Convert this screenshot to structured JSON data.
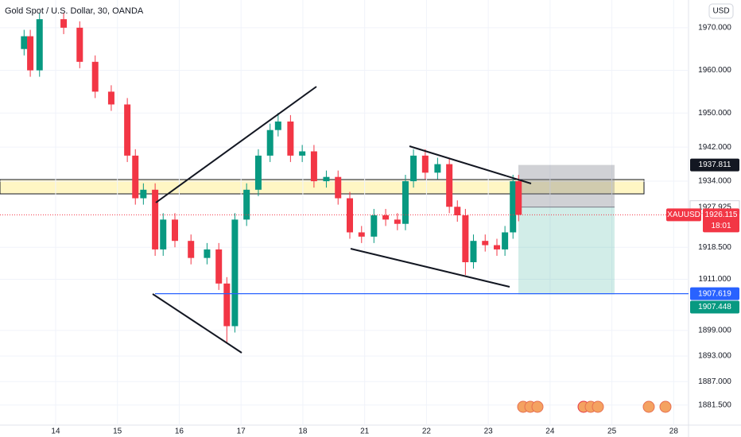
{
  "header": {
    "title": "Gold Spot / U.S. Dollar, 30, OANDA",
    "currency": "USD"
  },
  "chart_data": {
    "type": "candlestick",
    "x": [
      -0.51,
      -0.41,
      -0.26,
      0.13,
      0.39,
      0.64,
      0.9,
      1.16,
      1.29,
      1.42,
      1.61,
      1.74,
      1.93,
      2.19,
      2.45,
      2.64,
      2.77,
      2.9,
      3.09,
      3.28,
      3.47,
      3.6,
      3.8,
      3.99,
      4.18,
      4.38,
      4.57,
      4.76,
      4.95,
      5.15,
      5.34,
      5.53,
      5.66,
      5.79,
      5.98,
      6.18,
      6.37,
      6.5,
      6.63,
      6.76,
      6.95,
      7.14,
      7.27,
      7.4,
      7.49
    ],
    "open": [
      1965,
      1968,
      1960,
      1972,
      1970,
      1962,
      1955,
      1952,
      1940,
      1930,
      1932,
      1918,
      1925,
      1920,
      1916,
      1918,
      1910,
      1900,
      1925,
      1932,
      1940,
      1946,
      1948,
      1940,
      1941,
      1934,
      1935,
      1930,
      1922,
      1921,
      1926,
      1925,
      1924,
      1934,
      1940,
      1936,
      1938,
      1928,
      1926,
      1915,
      1920,
      1919,
      1918,
      1922,
      1934
    ],
    "high": [
      1969.5,
      1969.5,
      1973.5,
      1973.5,
      1971.5,
      1963.5,
      1956.5,
      1953.5,
      1941.5,
      1933.5,
      1933.5,
      1926.5,
      1926.5,
      1921.5,
      1919.5,
      1919.5,
      1911.5,
      1926.5,
      1933.5,
      1941.5,
      1947.5,
      1950,
      1949.5,
      1942.5,
      1942.5,
      1936.5,
      1936.5,
      1931.5,
      1923.5,
      1927.5,
      1927.5,
      1926.5,
      1935.5,
      1941.5,
      1941.5,
      1939.5,
      1939.5,
      1929.5,
      1927.5,
      1921.5,
      1921.5,
      1920.5,
      1923.5,
      1935.5,
      1935.5
    ],
    "low": [
      1963.5,
      1958.5,
      1958.5,
      1968.5,
      1960.5,
      1953.5,
      1950.5,
      1938.5,
      1928.5,
      1928.5,
      1916.5,
      1916.5,
      1918.5,
      1914.5,
      1914.5,
      1908.5,
      1896,
      1898.5,
      1923.5,
      1930.5,
      1938.5,
      1944.5,
      1938.5,
      1938.5,
      1932.5,
      1932.5,
      1928.5,
      1920.5,
      1919.5,
      1919.5,
      1923.5,
      1922.5,
      1922.5,
      1932.5,
      1934.5,
      1934.5,
      1926.5,
      1924.5,
      1912,
      1913.5,
      1917.5,
      1916.5,
      1916.5,
      1920.5,
      1924.6
    ],
    "close": [
      1968,
      1960,
      1972,
      1970,
      1962,
      1955,
      1952,
      1940,
      1930,
      1932,
      1918,
      1925,
      1920,
      1916,
      1918,
      1910,
      1900,
      1925,
      1932,
      1940,
      1946,
      1948,
      1940,
      1941,
      1934,
      1935,
      1930,
      1922,
      1921,
      1926,
      1925,
      1924,
      1934,
      1940,
      1936,
      1938,
      1928,
      1926,
      1915,
      1920,
      1919,
      1918,
      1922,
      1934,
      1926.115
    ],
    "up_color": "#089981",
    "down_color": "#f23645",
    "xlim": [
      -0.9,
      10.24
    ],
    "ylim": [
      1876.8,
      1976.5
    ],
    "xticks": [
      {
        "value": 0,
        "label": "14"
      },
      {
        "value": 1,
        "label": "15"
      },
      {
        "value": 2,
        "label": "16"
      },
      {
        "value": 3,
        "label": "17"
      },
      {
        "value": 4,
        "label": "18"
      },
      {
        "value": 5,
        "label": "21"
      },
      {
        "value": 6,
        "label": "22"
      },
      {
        "value": 7,
        "label": "23"
      },
      {
        "value": 8,
        "label": "24"
      },
      {
        "value": 9,
        "label": "25"
      },
      {
        "value": 10,
        "label": "28"
      }
    ],
    "yticks": [
      {
        "value": 1970,
        "label": "1970.000"
      },
      {
        "value": 1960,
        "label": "1960.000"
      },
      {
        "value": 1950,
        "label": "1950.000"
      },
      {
        "value": 1942,
        "label": "1942.000"
      },
      {
        "value": 1934,
        "label": "1934.000"
      },
      {
        "value": 1918.5,
        "label": "1918.500"
      },
      {
        "value": 1911,
        "label": "1911.000"
      },
      {
        "value": 1899,
        "label": "1899.000"
      },
      {
        "value": 1893,
        "label": "1893.000"
      },
      {
        "value": 1887,
        "label": "1887.000"
      },
      {
        "value": 1881.5,
        "label": "1881.500"
      }
    ],
    "position": {
      "stop": 1937.811,
      "entry": 1927.925,
      "target": 1907.448
    },
    "hline": {
      "value": 1907.619,
      "color": "#2962ff"
    },
    "last": {
      "symbol": "XAUUSD",
      "value": 1926.115,
      "countdown": "18:01",
      "color": "#f23645"
    }
  }
}
